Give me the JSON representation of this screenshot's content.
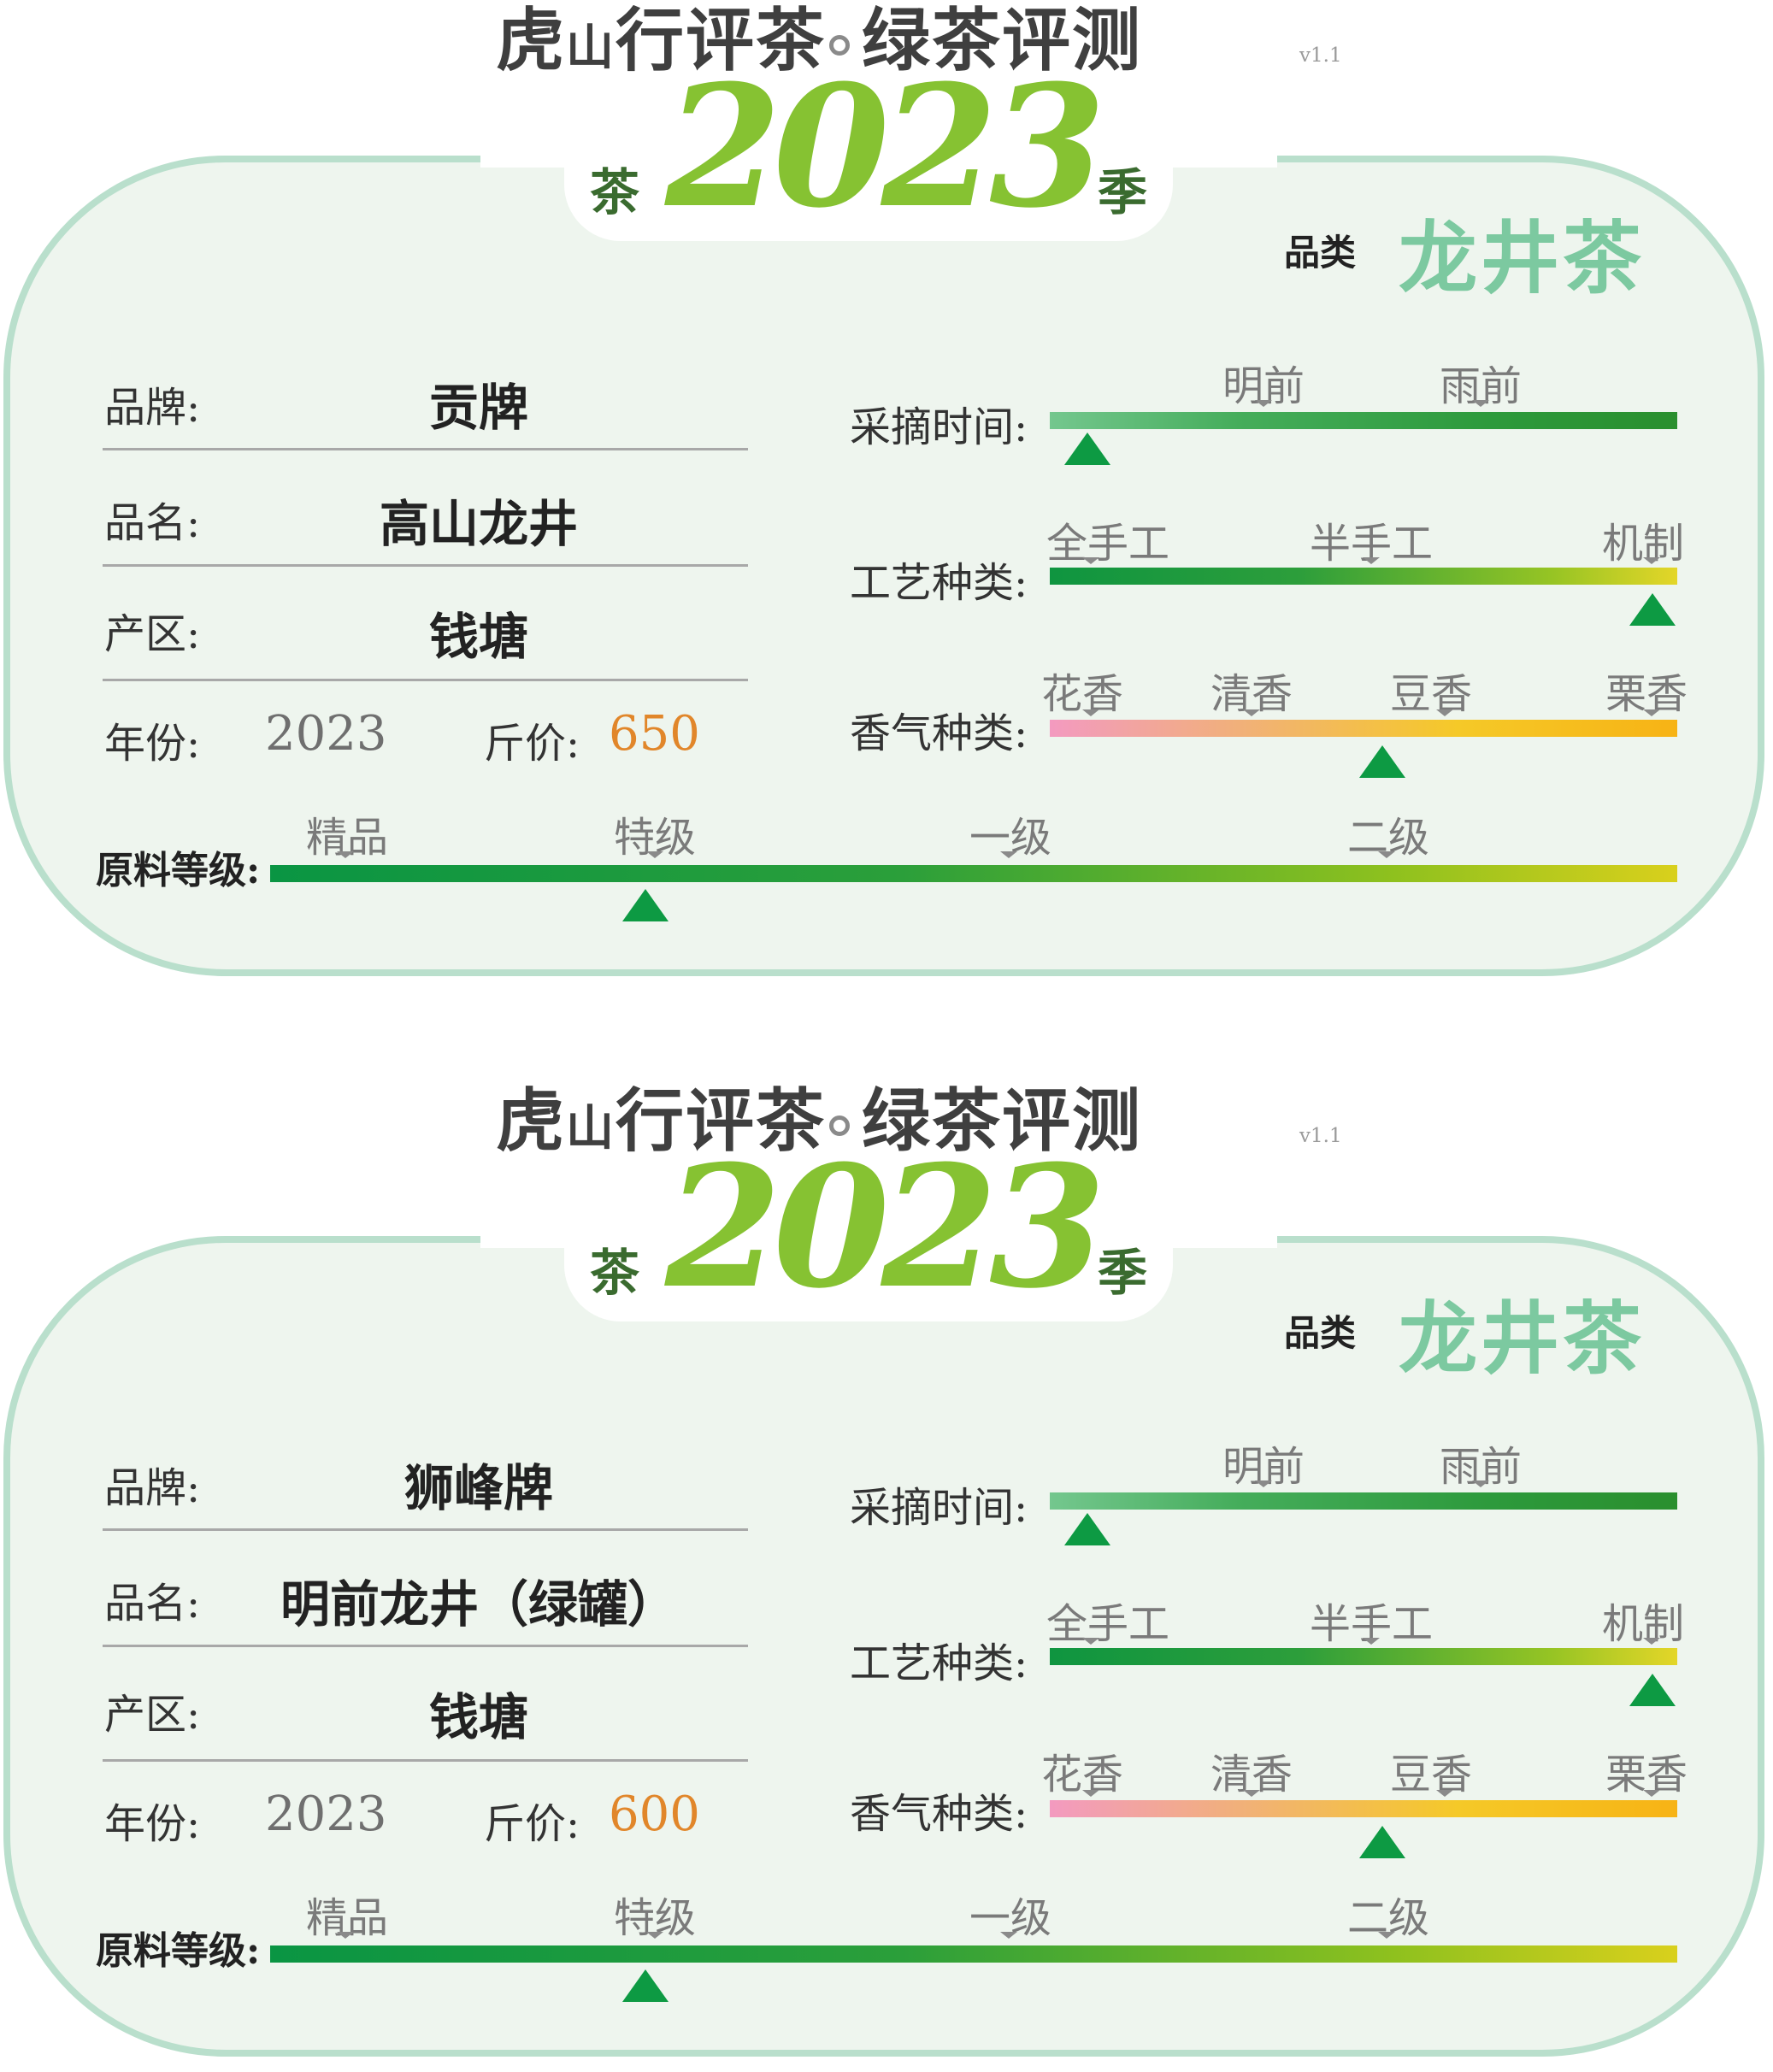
{
  "cards": [
    {
      "header": {
        "brand_small": "虎",
        "brand_mid": "山",
        "brand_rest": "行评茶",
        "subtitle": "绿茶评测",
        "version": "v1.1"
      },
      "season": {
        "left": "茶",
        "year": "2023",
        "right": "季"
      },
      "category": {
        "label": "品类",
        "value": "龙井茶"
      },
      "fields": {
        "brand_label": "品牌:",
        "brand": "贡牌",
        "name_label": "品名:",
        "name": "高山龙井",
        "origin_label": "产区:",
        "origin": "钱塘",
        "year_label": "年份:",
        "year": "2023",
        "price_label": "斤价:",
        "price": "650"
      },
      "picking": {
        "label": "采摘时间:",
        "ticks": [
          "明前",
          "雨前"
        ],
        "marker_fraction": 0.06
      },
      "craft": {
        "label": "工艺种类:",
        "ticks": [
          "全手工",
          "半手工",
          "机制"
        ],
        "marker_fraction": 0.96
      },
      "aroma": {
        "label": "香气种类:",
        "ticks": [
          "花香",
          "清香",
          "豆香",
          "栗香"
        ],
        "marker_fraction": 0.53
      },
      "grade": {
        "label": "原料等级:",
        "ticks": [
          "精品",
          "特级",
          "一级",
          "二级"
        ],
        "marker_fraction": 0.267
      }
    },
    {
      "header": {
        "brand_small": "虎",
        "brand_mid": "山",
        "brand_rest": "行评茶",
        "subtitle": "绿茶评测",
        "version": "v1.1"
      },
      "season": {
        "left": "茶",
        "year": "2023",
        "right": "季"
      },
      "category": {
        "label": "品类",
        "value": "龙井茶"
      },
      "fields": {
        "brand_label": "品牌:",
        "brand": "狮峰牌",
        "name_label": "品名:",
        "name": "明前龙井（绿罐）",
        "origin_label": "产区:",
        "origin": "钱塘",
        "year_label": "年份:",
        "year": "2023",
        "price_label": "斤价:",
        "price": "600"
      },
      "picking": {
        "label": "采摘时间:",
        "ticks": [
          "明前",
          "雨前"
        ],
        "marker_fraction": 0.06
      },
      "craft": {
        "label": "工艺种类:",
        "ticks": [
          "全手工",
          "半手工",
          "机制"
        ],
        "marker_fraction": 0.96
      },
      "aroma": {
        "label": "香气种类:",
        "ticks": [
          "花香",
          "清香",
          "豆香",
          "栗香"
        ],
        "marker_fraction": 0.53
      },
      "grade": {
        "label": "原料等级:",
        "ticks": [
          "精品",
          "特级",
          "一级",
          "二级"
        ],
        "marker_fraction": 0.267
      }
    }
  ]
}
